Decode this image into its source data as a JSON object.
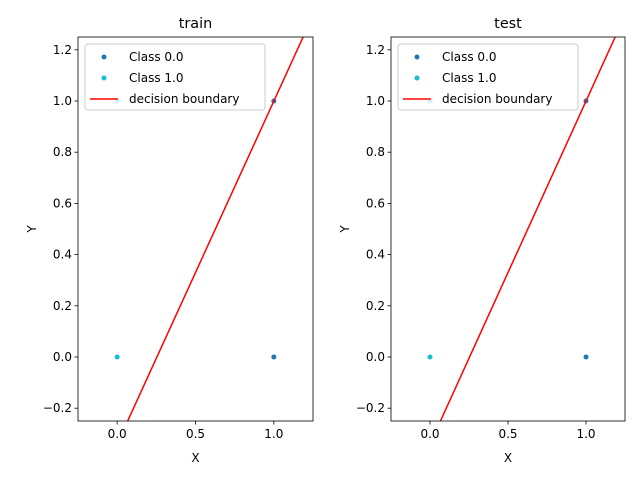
{
  "chart_data": [
    {
      "type": "scatter",
      "title": "train",
      "xlabel": "X",
      "ylabel": "Y",
      "xlim": [
        -0.25,
        1.25
      ],
      "ylim": [
        -0.25,
        1.25
      ],
      "xticks": [
        {
          "value": 0,
          "label": "0.0"
        },
        {
          "value": 0.5,
          "label": "0.5"
        },
        {
          "value": 1,
          "label": "1.0"
        }
      ],
      "yticks": [
        {
          "value": -0.2,
          "label": "−0.2"
        },
        {
          "value": 0,
          "label": "0.0"
        },
        {
          "value": 0.2,
          "label": "0.2"
        },
        {
          "value": 0.4,
          "label": "0.4"
        },
        {
          "value": 0.6,
          "label": "0.6"
        },
        {
          "value": 0.8,
          "label": "0.8"
        },
        {
          "value": 1,
          "label": "1.0"
        },
        {
          "value": 1.2,
          "label": "1.2"
        }
      ],
      "legend": "upper left",
      "series": [
        {
          "name": "Class 0.0",
          "type": "scatter",
          "color": "#1f77b4",
          "x": [
            1,
            1
          ],
          "values": [
            0,
            1
          ]
        },
        {
          "name": "Class 1.0",
          "type": "scatter",
          "color": "#17becf",
          "x": [
            0,
            0
          ],
          "values": [
            0,
            1
          ]
        },
        {
          "name": "decision boundary",
          "type": "line",
          "color": "#ff0000",
          "x": [
            0.067,
            1.187
          ],
          "values": [
            -0.25,
            1.25
          ]
        }
      ]
    },
    {
      "type": "scatter",
      "title": "test",
      "xlabel": "X",
      "ylabel": "Y",
      "xlim": [
        -0.25,
        1.25
      ],
      "ylim": [
        -0.25,
        1.25
      ],
      "xticks": [
        {
          "value": 0,
          "label": "0.0"
        },
        {
          "value": 0.5,
          "label": "0.5"
        },
        {
          "value": 1,
          "label": "1.0"
        }
      ],
      "yticks": [
        {
          "value": -0.2,
          "label": "−0.2"
        },
        {
          "value": 0,
          "label": "0.0"
        },
        {
          "value": 0.2,
          "label": "0.2"
        },
        {
          "value": 0.4,
          "label": "0.4"
        },
        {
          "value": 0.6,
          "label": "0.6"
        },
        {
          "value": 0.8,
          "label": "0.8"
        },
        {
          "value": 1,
          "label": "1.0"
        },
        {
          "value": 1.2,
          "label": "1.2"
        }
      ],
      "legend": "upper left",
      "series": [
        {
          "name": "Class 0.0",
          "type": "scatter",
          "color": "#1f77b4",
          "x": [
            1,
            1
          ],
          "values": [
            0,
            1
          ]
        },
        {
          "name": "Class 1.0",
          "type": "scatter",
          "color": "#17becf",
          "x": [
            0,
            0
          ],
          "values": [
            0,
            1
          ]
        },
        {
          "name": "decision boundary",
          "type": "line",
          "color": "#ff0000",
          "x": [
            0.067,
            1.187
          ],
          "values": [
            -0.25,
            1.25
          ]
        }
      ]
    }
  ]
}
